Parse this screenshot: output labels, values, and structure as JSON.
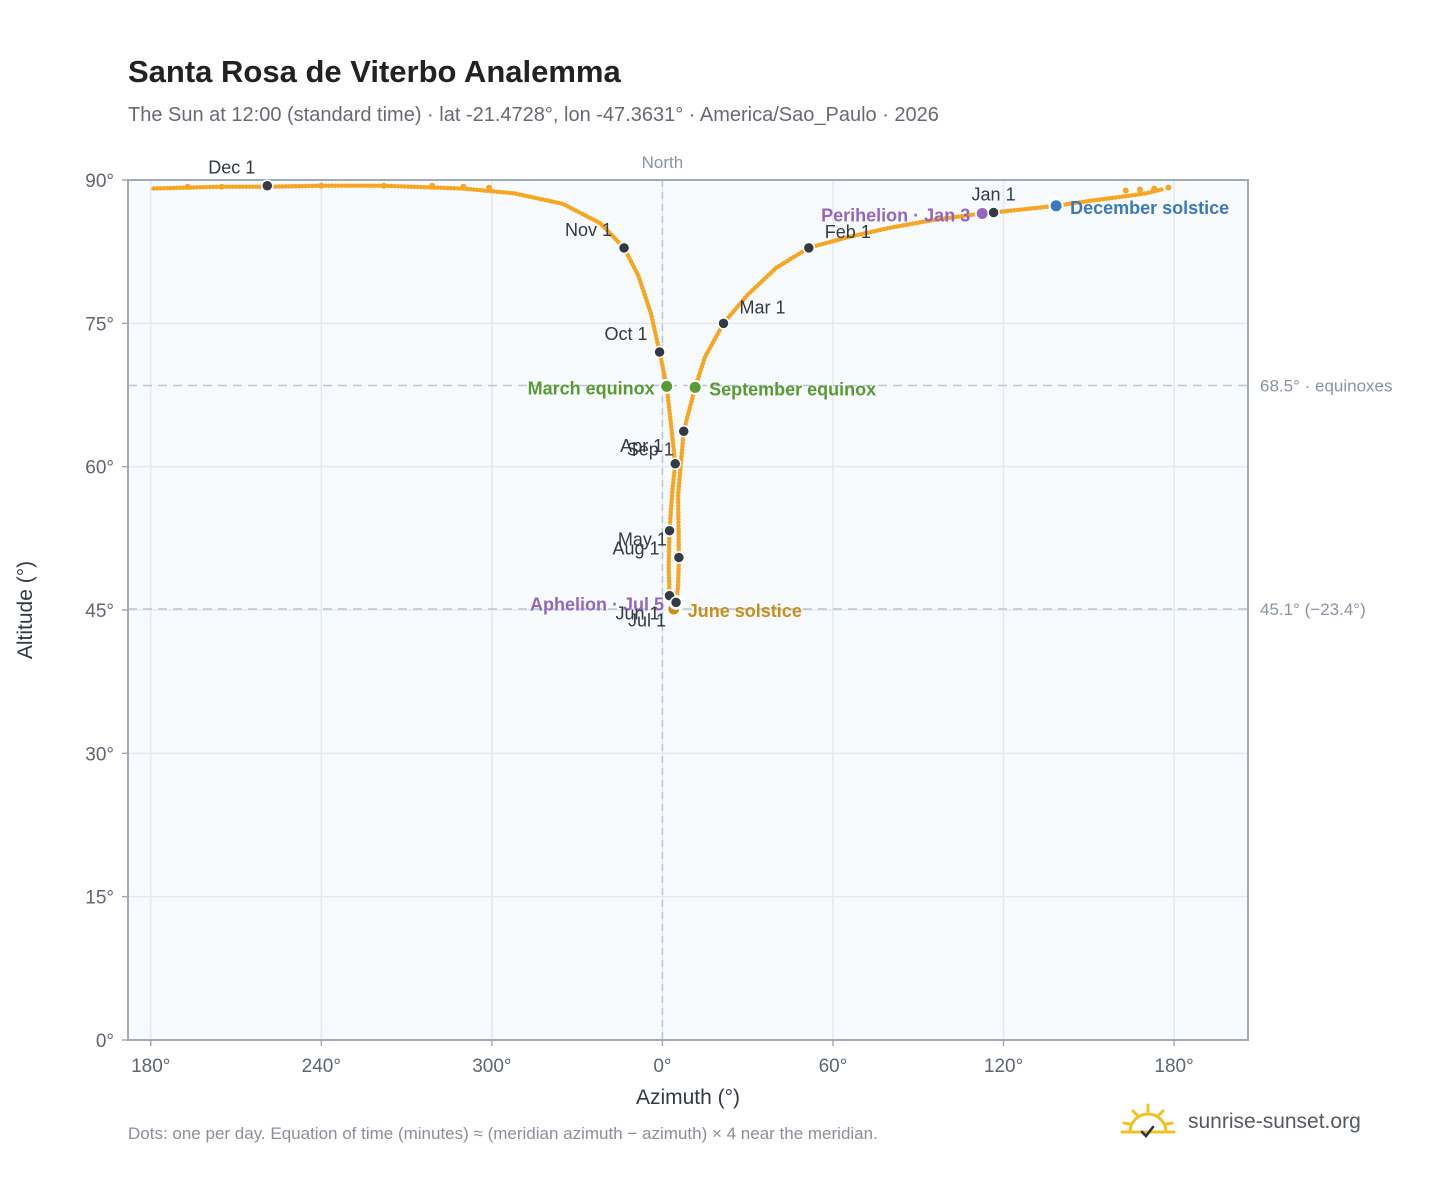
{
  "title": "Santa Rosa de Viterbo Analemma",
  "subtitle": "The Sun at 12:00 (standard time) · lat -21.4728°, lon -47.3631° · America/Sao_Paulo · 2026",
  "footnote": "Dots: one per day. Equation of time (minutes) ≈ (meridian azimuth − azimuth) × 4 near the meridian.",
  "brand": {
    "text": "sunrise-sunset.org",
    "logo_icon": "sun-logo-icon"
  },
  "colors": {
    "curve": "#f5a623",
    "month_dot": "#333a44",
    "equinox": "#5a9a32",
    "solstice_june": "#c8901a",
    "solstice_december": "#3a78c0",
    "apsis": "#9467bd",
    "plot_bg": "#f8fbfe",
    "grid": "#e4e9ef",
    "ref_line": "#b8c6d2",
    "axis": "#a0abb8"
  },
  "chart_data": {
    "type": "scatter",
    "xlabel": "Azimuth (°)",
    "ylabel": "Altitude (°)",
    "x_ticks": [
      "180°",
      "240°",
      "300°",
      "0°",
      "60°",
      "120°",
      "180°"
    ],
    "y_ticks": [
      "0°",
      "15°",
      "30°",
      "45°",
      "60°",
      "75°",
      "90°"
    ],
    "ylim": [
      0,
      90
    ],
    "x_unwrapped_range": [
      -188,
      206
    ],
    "meridian_label": "North",
    "reference_lines": [
      {
        "altitude": 68.5,
        "label": "68.5° · equinoxes"
      },
      {
        "altitude": 45.1,
        "label": "45.1° (−23.4°)"
      }
    ],
    "series": [
      {
        "marker": "daily-dots",
        "curve_points": [
          {
            "azimuth": 175.5,
            "altitude": 89.0
          },
          {
            "azimuth": 170,
            "altitude": 88.6
          },
          {
            "azimuth": 163,
            "altitude": 88.3
          },
          {
            "azimuth": 150,
            "altitude": 87.8
          },
          {
            "azimuth": 138.5,
            "altitude": 87.3
          },
          {
            "azimuth": 116.5,
            "altitude": 86.6
          },
          {
            "azimuth": 112.5,
            "altitude": 86.5
          },
          {
            "azimuth": 95,
            "altitude": 85.8
          },
          {
            "azimuth": 80,
            "altitude": 85.0
          },
          {
            "azimuth": 65,
            "altitude": 84.0
          },
          {
            "azimuth": 51.5,
            "altitude": 82.9
          },
          {
            "azimuth": 40,
            "altitude": 80.8
          },
          {
            "azimuth": 30,
            "altitude": 78.0
          },
          {
            "azimuth": 21.5,
            "altitude": 75.0
          },
          {
            "azimuth": 15,
            "altitude": 71.5
          },
          {
            "azimuth": 11.5,
            "altitude": 68.3
          },
          {
            "azimuth": 7.5,
            "altitude": 63.7
          },
          {
            "azimuth": 5.5,
            "altitude": 57.0
          },
          {
            "azimuth": 5.8,
            "altitude": 50.5
          },
          {
            "azimuth": 5.5,
            "altitude": 47.5
          },
          {
            "azimuth": 4.8,
            "altitude": 45.8
          },
          {
            "azimuth": 4.0,
            "altitude": 45.1
          },
          {
            "azimuth": 3.2,
            "altitude": 45.5
          },
          {
            "azimuth": 2.5,
            "altitude": 46.5
          },
          {
            "azimuth": 2.2,
            "altitude": 49.5
          },
          {
            "azimuth": 2.5,
            "altitude": 53.3
          },
          {
            "azimuth": 3.5,
            "altitude": 57.5
          },
          {
            "azimuth": 4.5,
            "altitude": 60.3
          },
          {
            "azimuth": 3.0,
            "altitude": 64.5
          },
          {
            "azimuth": 1.5,
            "altitude": 68.4
          },
          {
            "azimuth": -1.0,
            "altitude": 72.0
          },
          {
            "azimuth": -4.0,
            "altitude": 76.0
          },
          {
            "azimuth": -8.5,
            "altitude": 80.0
          },
          {
            "azimuth": -13.5,
            "altitude": 82.9
          },
          {
            "azimuth": -22,
            "altitude": 85.5
          },
          {
            "azimuth": -35,
            "altitude": 87.5
          },
          {
            "azimuth": -52,
            "altitude": 88.6
          },
          {
            "azimuth": -70,
            "altitude": 89.1
          },
          {
            "azimuth": -98,
            "altitude": 89.4
          },
          {
            "azimuth": -120,
            "altitude": 89.4
          },
          {
            "azimuth": -138,
            "altitude": 89.3
          },
          {
            "azimuth": -155,
            "altitude": 89.3
          },
          {
            "azimuth": -167,
            "altitude": 89.2
          },
          {
            "azimuth": -180,
            "altitude": 89.1
          }
        ],
        "sparse_dots": [
          {
            "azimuth": -167,
            "altitude": 89.3
          },
          {
            "azimuth": -155,
            "altitude": 89.3
          },
          {
            "azimuth": -120,
            "altitude": 89.4
          },
          {
            "azimuth": -98,
            "altitude": 89.4
          },
          {
            "azimuth": -81,
            "altitude": 89.4
          },
          {
            "azimuth": -70,
            "altitude": 89.3
          },
          {
            "azimuth": -61,
            "altitude": 89.2
          },
          {
            "azimuth": 178,
            "altitude": 89.2
          },
          {
            "azimuth": 173,
            "altitude": 89.1
          },
          {
            "azimuth": 168,
            "altitude": 89.0
          },
          {
            "azimuth": 163,
            "altitude": 88.9
          }
        ]
      }
    ],
    "month_markers": [
      {
        "label": "Jan 1",
        "azimuth": 116.5,
        "altitude": 86.6,
        "label_anchor": "above"
      },
      {
        "label": "Feb 1",
        "azimuth": 51.5,
        "altitude": 82.9,
        "label_anchor": "upper-right"
      },
      {
        "label": "Mar 1",
        "azimuth": 21.5,
        "altitude": 75.0,
        "label_anchor": "upper-right"
      },
      {
        "label": "Apr 1",
        "azimuth": 4.5,
        "altitude": 60.3,
        "label_anchor": "upper-left"
      },
      {
        "label": "May 1",
        "azimuth": 5.8,
        "altitude": 50.5,
        "label_anchor": "upper-left"
      },
      {
        "label": "Jun 1",
        "azimuth": 2.5,
        "altitude": 46.5,
        "label_anchor": "lower-left"
      },
      {
        "label": "Jul 1",
        "azimuth": 4.8,
        "altitude": 45.8,
        "label_anchor": "lower-left"
      },
      {
        "label": "Aug 1",
        "azimuth": 2.5,
        "altitude": 53.3,
        "label_anchor": "lower-left"
      },
      {
        "label": "Sep 1",
        "azimuth": 7.5,
        "altitude": 63.7,
        "label_anchor": "lower-left"
      },
      {
        "label": "Oct 1",
        "azimuth": -1.0,
        "altitude": 72.0,
        "label_anchor": "upper-left"
      },
      {
        "label": "Nov 1",
        "azimuth": -13.5,
        "altitude": 82.9,
        "label_anchor": "upper-left"
      },
      {
        "label": "Dec 1",
        "azimuth": -139,
        "altitude": 89.4,
        "label_anchor": "upper-left"
      }
    ],
    "events": [
      {
        "label": "March equinox",
        "azimuth": 1.5,
        "altitude": 68.4,
        "color_key": "equinox",
        "label_anchor": "left"
      },
      {
        "label": "September equinox",
        "azimuth": 11.5,
        "altitude": 68.3,
        "color_key": "equinox",
        "label_anchor": "right"
      },
      {
        "label": "June solstice",
        "azimuth": 4.0,
        "altitude": 45.1,
        "color_key": "solstice_june",
        "label_anchor": "right"
      },
      {
        "label": "December solstice",
        "azimuth": 138.5,
        "altitude": 87.3,
        "color_key": "solstice_december",
        "label_anchor": "right"
      },
      {
        "label": "Perihelion · Jan 3",
        "azimuth": 112.5,
        "altitude": 86.5,
        "color_key": "apsis",
        "label_anchor": "left"
      },
      {
        "label": "Aphelion · Jul 5",
        "azimuth": 4.8,
        "altitude": 45.8,
        "color_key": "apsis",
        "label_anchor": "left"
      }
    ]
  }
}
